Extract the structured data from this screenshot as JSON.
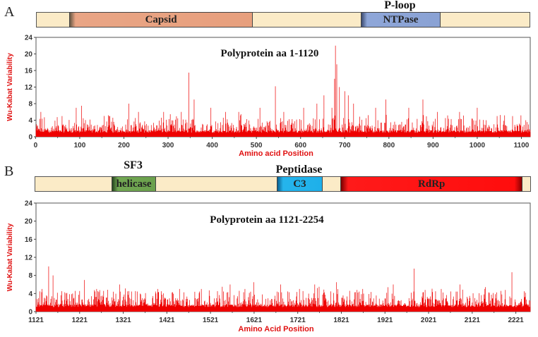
{
  "panel_a": {
    "label": "A",
    "domains": [
      {
        "label": "Capsid",
        "above": "",
        "start": 75,
        "end": 490
      },
      {
        "label": "NTPase",
        "above": "P-loop",
        "start": 735,
        "end": 915
      }
    ]
  },
  "panel_b": {
    "label": "B",
    "domains": [
      {
        "label": "helicase",
        "above": "SF3",
        "start": 1295,
        "end": 1397
      },
      {
        "label": "C3",
        "above": "Peptidase",
        "start": 1672,
        "end": 1777
      },
      {
        "label": "RdRp",
        "above": "",
        "start": 1818,
        "end": 2233
      }
    ]
  },
  "colors": {
    "bars": "#ee0000",
    "axis_label": "#e01010"
  },
  "chart_data": [
    {
      "type": "bar",
      "title": "Polyprotein aa 1-1120",
      "xlabel": "Amino acid Position",
      "ylabel": "Wu-Kabat Variability",
      "xlim": [
        1,
        1120
      ],
      "ylim": [
        0,
        24
      ],
      "xticks": [
        0,
        100,
        200,
        300,
        400,
        500,
        600,
        700,
        800,
        900,
        1000,
        1100
      ],
      "yticks": [
        0,
        4,
        8,
        12,
        16,
        20,
        24
      ],
      "baseline": 1,
      "peaks": [
        {
          "x": 12,
          "y": 6
        },
        {
          "x": 60,
          "y": 5
        },
        {
          "x": 92,
          "y": 7
        },
        {
          "x": 104,
          "y": 7.5
        },
        {
          "x": 168,
          "y": 5
        },
        {
          "x": 211,
          "y": 8
        },
        {
          "x": 233,
          "y": 6
        },
        {
          "x": 290,
          "y": 6
        },
        {
          "x": 330,
          "y": 6
        },
        {
          "x": 347,
          "y": 15.5
        },
        {
          "x": 359,
          "y": 9
        },
        {
          "x": 397,
          "y": 7
        },
        {
          "x": 430,
          "y": 6
        },
        {
          "x": 460,
          "y": 6
        },
        {
          "x": 508,
          "y": 7
        },
        {
          "x": 543,
          "y": 12.2
        },
        {
          "x": 562,
          "y": 6
        },
        {
          "x": 607,
          "y": 7
        },
        {
          "x": 637,
          "y": 8
        },
        {
          "x": 653,
          "y": 10
        },
        {
          "x": 671,
          "y": 7
        },
        {
          "x": 677,
          "y": 14
        },
        {
          "x": 679,
          "y": 22
        },
        {
          "x": 682,
          "y": 17.5
        },
        {
          "x": 688,
          "y": 12
        },
        {
          "x": 700,
          "y": 11
        },
        {
          "x": 708,
          "y": 10
        },
        {
          "x": 720,
          "y": 8
        },
        {
          "x": 770,
          "y": 7
        },
        {
          "x": 793,
          "y": 9
        },
        {
          "x": 845,
          "y": 7
        },
        {
          "x": 877,
          "y": 9
        },
        {
          "x": 910,
          "y": 6
        },
        {
          "x": 960,
          "y": 6
        },
        {
          "x": 1000,
          "y": 7
        },
        {
          "x": 1045,
          "y": 5
        },
        {
          "x": 1080,
          "y": 5
        },
        {
          "x": 1110,
          "y": 4
        }
      ]
    },
    {
      "type": "bar",
      "title": "Polyprotein aa 1121-2254",
      "xlabel": "Amino Acid Position",
      "ylabel": "Wu-Kabat Variability",
      "xlim": [
        1121,
        2254
      ],
      "ylim": [
        0,
        24
      ],
      "xticks": [
        1121,
        1221,
        1321,
        1421,
        1521,
        1621,
        1721,
        1821,
        1921,
        2021,
        2121,
        2221
      ],
      "yticks": [
        0,
        4,
        8,
        12,
        16,
        20,
        24
      ],
      "baseline": 1,
      "peaks": [
        {
          "x": 1135,
          "y": 5
        },
        {
          "x": 1150,
          "y": 10
        },
        {
          "x": 1160,
          "y": 8
        },
        {
          "x": 1232,
          "y": 7
        },
        {
          "x": 1260,
          "y": 5
        },
        {
          "x": 1313,
          "y": 6
        },
        {
          "x": 1400,
          "y": 5
        },
        {
          "x": 1450,
          "y": 5
        },
        {
          "x": 1500,
          "y": 5
        },
        {
          "x": 1548,
          "y": 5.5
        },
        {
          "x": 1566,
          "y": 6
        },
        {
          "x": 1600,
          "y": 5
        },
        {
          "x": 1620,
          "y": 6.5
        },
        {
          "x": 1682,
          "y": 6
        },
        {
          "x": 1725,
          "y": 5
        },
        {
          "x": 1760,
          "y": 6
        },
        {
          "x": 1770,
          "y": 5.5
        },
        {
          "x": 1810,
          "y": 6.5
        },
        {
          "x": 1870,
          "y": 5
        },
        {
          "x": 1940,
          "y": 6
        },
        {
          "x": 1988,
          "y": 9.5
        },
        {
          "x": 2050,
          "y": 5
        },
        {
          "x": 2093,
          "y": 6
        },
        {
          "x": 2150,
          "y": 5
        },
        {
          "x": 2212,
          "y": 8.7
        },
        {
          "x": 2240,
          "y": 4.5
        }
      ]
    }
  ]
}
